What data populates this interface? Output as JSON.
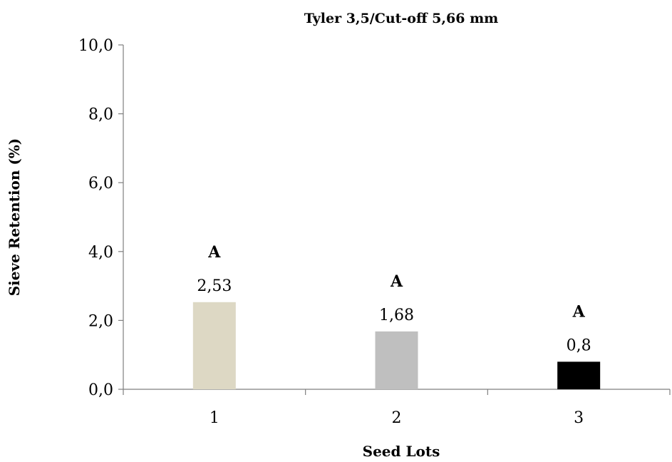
{
  "chart_data": {
    "type": "bar",
    "title": "Tyler 3,5/Cut-off 5,66 mm",
    "xlabel": "Seed Lots",
    "ylabel": "Sieve Retention (%)",
    "categories": [
      "1",
      "2",
      "3"
    ],
    "values": [
      2.53,
      1.68,
      0.8
    ],
    "value_labels": [
      "2,53",
      "1,68",
      "0,8"
    ],
    "group_labels": [
      "A",
      "A",
      "A"
    ],
    "colors": [
      "#ddd8c4",
      "#bfbfbf",
      "#000000"
    ],
    "ylim": [
      0,
      10
    ],
    "yticks": [
      0,
      2,
      4,
      6,
      8,
      10
    ],
    "ytick_labels": [
      "0,0",
      "2,0",
      "4,0",
      "6,0",
      "8,0",
      "10,0"
    ],
    "grid": false,
    "legend": "none"
  }
}
